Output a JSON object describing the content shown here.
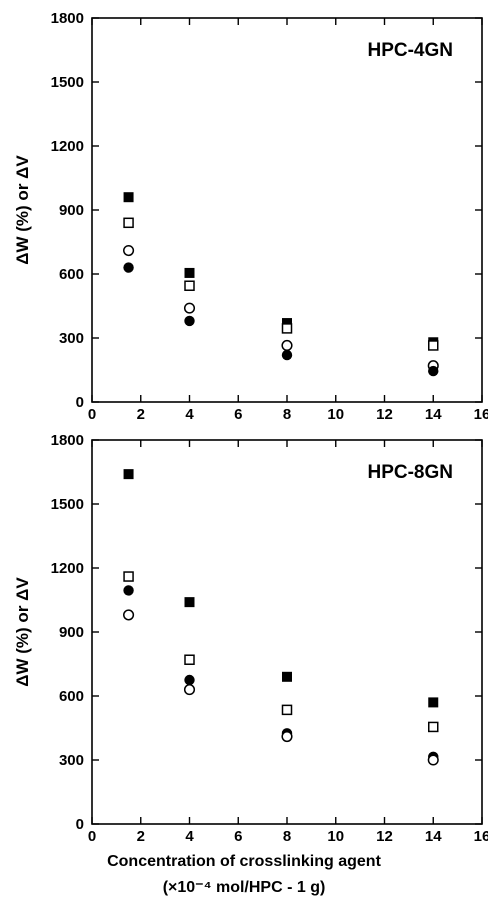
{
  "chart_data": [
    {
      "type": "scatter",
      "title": "HPC-4GN",
      "ylabel": "ΔW (%) or ΔV",
      "xlim": [
        0,
        16
      ],
      "ylim": [
        0,
        1800
      ],
      "xticks": [
        0,
        2,
        4,
        6,
        8,
        10,
        12,
        14,
        16
      ],
      "yticks": [
        0,
        300,
        600,
        900,
        1200,
        1500,
        1800
      ],
      "series": [
        {
          "marker": "filled-square",
          "x": [
            1.5,
            4,
            8,
            14
          ],
          "values": [
            960,
            605,
            370,
            280
          ]
        },
        {
          "marker": "open-square",
          "x": [
            1.5,
            4,
            8,
            14
          ],
          "values": [
            840,
            545,
            345,
            265
          ]
        },
        {
          "marker": "open-circle",
          "x": [
            1.5,
            4,
            8,
            14
          ],
          "values": [
            710,
            440,
            265,
            170
          ]
        },
        {
          "marker": "filled-circle",
          "x": [
            1.5,
            4,
            8,
            14
          ],
          "values": [
            630,
            380,
            220,
            145
          ]
        }
      ]
    },
    {
      "type": "scatter",
      "title": "HPC-8GN",
      "ylabel": "ΔW (%) or ΔV",
      "xlabel": "Concentration of crosslinking agent",
      "xlabel2": "(×10⁻⁴ mol/HPC - 1 g)",
      "xlim": [
        0,
        16
      ],
      "ylim": [
        0,
        1800
      ],
      "xticks": [
        0,
        2,
        4,
        6,
        8,
        10,
        12,
        14,
        16
      ],
      "yticks": [
        0,
        300,
        600,
        900,
        1200,
        1500,
        1800
      ],
      "series": [
        {
          "marker": "filled-square",
          "x": [
            1.5,
            4,
            8,
            14
          ],
          "values": [
            1640,
            1040,
            690,
            570
          ]
        },
        {
          "marker": "open-square",
          "x": [
            1.5,
            4,
            8,
            14
          ],
          "values": [
            1160,
            770,
            535,
            455
          ]
        },
        {
          "marker": "filled-circle",
          "x": [
            1.5,
            4,
            8,
            14
          ],
          "values": [
            1095,
            675,
            425,
            315
          ]
        },
        {
          "marker": "open-circle",
          "x": [
            1.5,
            4,
            8,
            14
          ],
          "values": [
            980,
            630,
            410,
            300
          ]
        }
      ]
    }
  ]
}
